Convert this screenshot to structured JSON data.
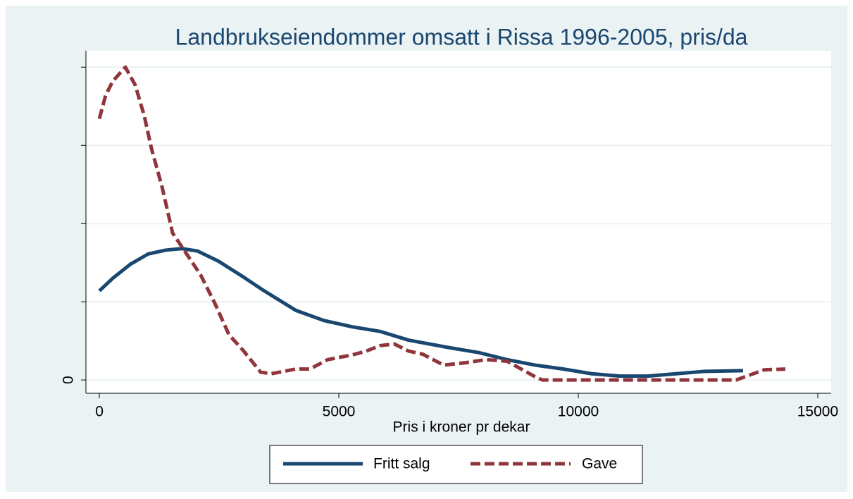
{
  "chart_data": {
    "type": "line",
    "title": "Landbrukseiendommer omsatt i Rissa 1996-2005, pris/da",
    "x_label": "Pris i kroner pr dekar",
    "xlim": [
      -280,
      15280
    ],
    "xticks": [
      0,
      5000,
      10000,
      15000
    ],
    "ylim": [
      -0.17,
      4.21
    ],
    "yticks": [
      0,
      {
        "value": 1
      },
      {
        "value": 2
      },
      {
        "value": 3
      },
      {
        "value": 4
      }
    ],
    "grid": true,
    "legend": "bottom",
    "series": [
      {
        "name": "Fritt salg",
        "color": "#1a476f",
        "dash": false,
        "x": [
          0,
          279,
          647,
          1015,
          1382,
          1721,
          2044,
          2485,
          3000,
          3441,
          4103,
          4691,
          5279,
          5868,
          6456,
          7338,
          7926,
          8515,
          9103,
          9691,
          10279,
          10868,
          11456,
          12044,
          12632,
          13441
        ],
        "values": [
          1.14,
          1.3,
          1.48,
          1.61,
          1.66,
          1.68,
          1.65,
          1.52,
          1.32,
          1.14,
          0.89,
          0.76,
          0.68,
          0.62,
          0.51,
          0.41,
          0.35,
          0.26,
          0.19,
          0.14,
          0.08,
          0.05,
          0.05,
          0.08,
          0.11,
          0.12
        ]
      },
      {
        "name": "Gave",
        "color": "#90353b",
        "dash": true,
        "x": [
          0,
          132,
          279,
          544,
          750,
          941,
          1088,
          1309,
          1529,
          1824,
          2118,
          2412,
          2706,
          3000,
          3368,
          3588,
          4103,
          4397,
          4765,
          5279,
          5574,
          5868,
          6162,
          6456,
          6750,
          7191,
          7632,
          8074,
          8515,
          9103,
          9250,
          13294,
          13882,
          14324
        ],
        "values": [
          3.34,
          3.64,
          3.82,
          4.0,
          3.77,
          3.37,
          2.96,
          2.47,
          1.88,
          1.61,
          1.34,
          0.98,
          0.58,
          0.38,
          0.1,
          0.08,
          0.14,
          0.14,
          0.26,
          0.32,
          0.37,
          0.44,
          0.46,
          0.37,
          0.33,
          0.19,
          0.22,
          0.26,
          0.24,
          0.04,
          0,
          0,
          0.13,
          0.14
        ]
      }
    ]
  }
}
